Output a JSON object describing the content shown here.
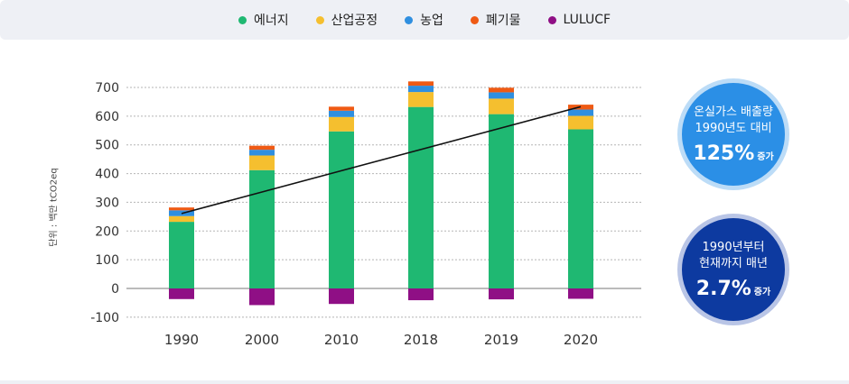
{
  "legend": [
    {
      "label": "에너지",
      "color": "#1fb872"
    },
    {
      "label": "산업공정",
      "color": "#f5bf2f"
    },
    {
      "label": "농업",
      "color": "#2f8fe0"
    },
    {
      "label": "폐기물",
      "color": "#ef5a14"
    },
    {
      "label": "LULUCF",
      "color": "#8f0f85"
    }
  ],
  "unit_label": "단위 : 백만 tCO2eq",
  "badges": {
    "first": {
      "line1": "온실가스 배출량",
      "line2": "1990년도 대비",
      "big": "125%",
      "suffix": "증가"
    },
    "second": {
      "line1": "1990년부터",
      "line2": "현재까지 매년",
      "big": "2.7%",
      "suffix": "증가"
    }
  },
  "chart_data": {
    "type": "bar",
    "stacked": true,
    "categories": [
      "1990",
      "2000",
      "2010",
      "2018",
      "2019",
      "2020"
    ],
    "series": [
      {
        "name": "에너지",
        "color": "#1fb872",
        "values": [
          232,
          412,
          547,
          632,
          607,
          554
        ]
      },
      {
        "name": "산업공정",
        "color": "#f5bf2f",
        "values": [
          20,
          51,
          50,
          52,
          54,
          47
        ]
      },
      {
        "name": "농업",
        "color": "#2f8fe0",
        "values": [
          20,
          20,
          22,
          22,
          22,
          22
        ]
      },
      {
        "name": "폐기물",
        "color": "#ef5a14",
        "values": [
          10,
          14,
          14,
          15,
          16,
          17
        ]
      },
      {
        "name": "LULUCF",
        "color": "#8f0f85",
        "values": [
          -37,
          -58,
          -54,
          -41,
          -38,
          -36
        ]
      }
    ],
    "trend_line": {
      "from": [
        "1990",
        261
      ],
      "to": [
        "2020",
        633
      ],
      "color": "#111111"
    },
    "ylim": [
      -100,
      700
    ],
    "yticks": [
      -100,
      0,
      100,
      200,
      300,
      400,
      500,
      600,
      700
    ],
    "grid": "dotted-horizontal"
  }
}
